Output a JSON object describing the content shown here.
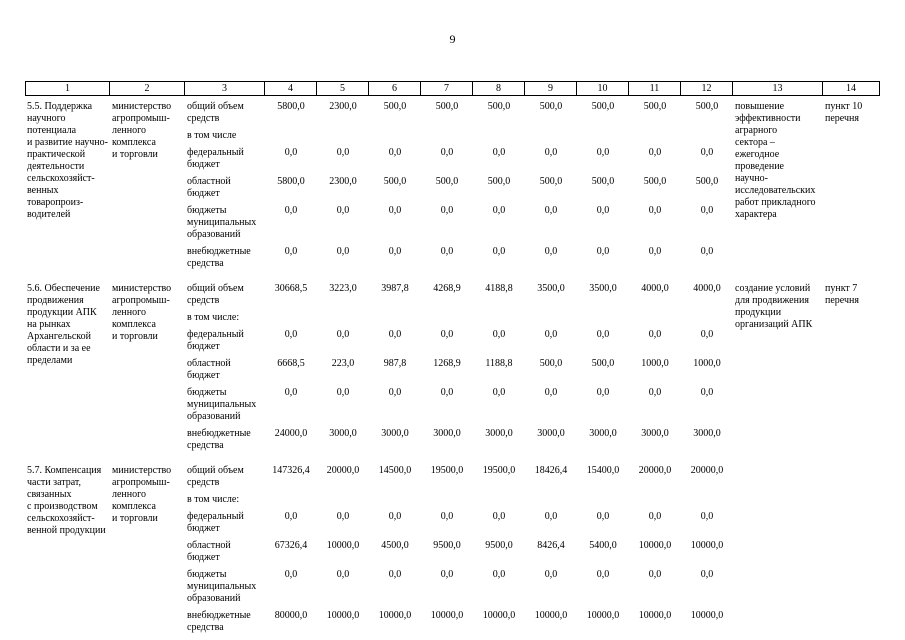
{
  "page": {
    "number": "9"
  },
  "table": {
    "column_numbers": [
      "1",
      "2",
      "3",
      "4",
      "5",
      "6",
      "7",
      "8",
      "9",
      "10",
      "11",
      "12",
      "13",
      "14"
    ],
    "rows": [
      {
        "title": "5.5. Поддержка\nнаучного\nпотенциала\nи развитие научно-\nпрактической\nдеятельности\nсельскохозяйст-\nвенных\nтоваропроиз-\nводителей",
        "executor": "министерство\nагропромыш-\nленного\nкомплекса\nи торговли",
        "sections": [
          {
            "label": "общий объем\nсредств",
            "values": [
              "5800,0",
              "2300,0",
              "500,0",
              "500,0",
              "500,0",
              "500,0",
              "500,0",
              "500,0",
              "500,0"
            ]
          },
          {
            "label": "в том числе",
            "values": []
          },
          {
            "label": "федеральный\nбюджет",
            "values": [
              "0,0",
              "0,0",
              "0,0",
              "0,0",
              "0,0",
              "0,0",
              "0,0",
              "0,0",
              "0,0"
            ]
          },
          {
            "label": "областной\nбюджет",
            "values": [
              "5800,0",
              "2300,0",
              "500,0",
              "500,0",
              "500,0",
              "500,0",
              "500,0",
              "500,0",
              "500,0"
            ]
          },
          {
            "label": "бюджеты\nмуниципальных\nобразований",
            "values": [
              "0,0",
              "0,0",
              "0,0",
              "0,0",
              "0,0",
              "0,0",
              "0,0",
              "0,0",
              "0,0"
            ]
          },
          {
            "label": "внебюджетные\nсредства",
            "values": [
              "0,0",
              "0,0",
              "0,0",
              "0,0",
              "0,0",
              "0,0",
              "0,0",
              "0,0",
              "0,0"
            ]
          }
        ],
        "expected_result": "повышение\nэффективности\nаграрного\nсектора –\nежегодное\nпроведение\nнаучно-\nисследовательских\nработ прикладного\nхарактера",
        "reference": "пункт 10\nперечня"
      },
      {
        "title": "5.6. Обеспечение\nпродвижения\nпродукции АПК\nна рынках\nАрхангельской\nобласти и за ее\nпределами",
        "executor": "министерство\nагропромыш-\nленного\nкомплекса\nи торговли",
        "sections": [
          {
            "label": "общий объем\nсредств",
            "values": [
              "30668,5",
              "3223,0",
              "3987,8",
              "4268,9",
              "4188,8",
              "3500,0",
              "3500,0",
              "4000,0",
              "4000,0"
            ]
          },
          {
            "label": "в том числе:",
            "values": []
          },
          {
            "label": "федеральный\nбюджет",
            "values": [
              "0,0",
              "0,0",
              "0,0",
              "0,0",
              "0,0",
              "0,0",
              "0,0",
              "0,0",
              "0,0"
            ]
          },
          {
            "label": "областной\nбюджет",
            "values": [
              "6668,5",
              "223,0",
              "987,8",
              "1268,9",
              "1188,8",
              "500,0",
              "500,0",
              "1000,0",
              "1000,0"
            ]
          },
          {
            "label": "бюджеты\nмуниципальных\nобразований",
            "values": [
              "0,0",
              "0,0",
              "0,0",
              "0,0",
              "0,0",
              "0,0",
              "0,0",
              "0,0",
              "0,0"
            ]
          },
          {
            "label": "внебюджетные\nсредства",
            "values": [
              "24000,0",
              "3000,0",
              "3000,0",
              "3000,0",
              "3000,0",
              "3000,0",
              "3000,0",
              "3000,0",
              "3000,0"
            ]
          }
        ],
        "expected_result": "создание условий\nдля продвижения\nпродукции\nорганизаций АПК",
        "reference": "пункт 7\nперечня"
      },
      {
        "title": "5.7. Компенсация\nчасти затрат,\nсвязанных\nс производством\nсельскохозяйст-\nвенной продукции",
        "executor": "министерство\nагропромыш-\nленного\nкомплекса\nи торговли",
        "sections": [
          {
            "label": "общий объем\nсредств",
            "values": [
              "147326,4",
              "20000,0",
              "14500,0",
              "19500,0",
              "19500,0",
              "18426,4",
              "15400,0",
              "20000,0",
              "20000,0"
            ]
          },
          {
            "label": "в том числе:",
            "values": []
          },
          {
            "label": "федеральный\nбюджет",
            "values": [
              "0,0",
              "0,0",
              "0,0",
              "0,0",
              "0,0",
              "0,0",
              "0,0",
              "0,0",
              "0,0"
            ]
          },
          {
            "label": "областной\nбюджет",
            "values": [
              "67326,4",
              "10000,0",
              "4500,0",
              "9500,0",
              "9500,0",
              "8426,4",
              "5400,0",
              "10000,0",
              "10000,0"
            ]
          },
          {
            "label": "бюджеты\nмуниципальных\nобразований",
            "values": [
              "0,0",
              "0,0",
              "0,0",
              "0,0",
              "0,0",
              "0,0",
              "0,0",
              "0,0",
              "0,0"
            ]
          },
          {
            "label": "внебюджетные\nсредства",
            "values": [
              "80000,0",
              "10000,0",
              "10000,0",
              "10000,0",
              "10000,0",
              "10000,0",
              "10000,0",
              "10000,0",
              "10000,0"
            ]
          }
        ],
        "expected_result": "",
        "reference": ""
      }
    ]
  }
}
